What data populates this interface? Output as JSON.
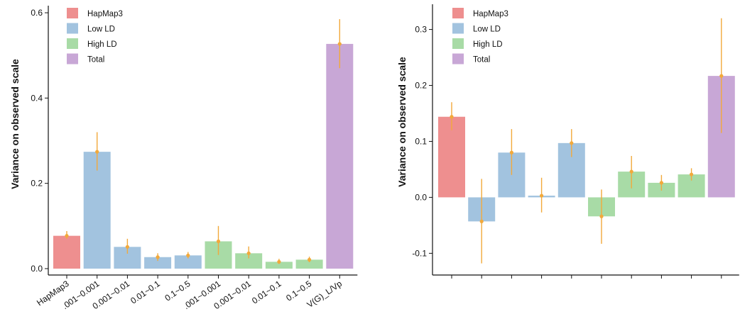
{
  "colors": {
    "HapMap3": "#ee8f8f",
    "Low LD": "#a2c3df",
    "High LD": "#a8dba6",
    "Total": "#c8a7d6",
    "error": "#f2a93b",
    "axis": "#111111"
  },
  "chart_data": [
    {
      "type": "bar",
      "ylabel": "Variance on observed scale",
      "ylim": [
        -0.01,
        0.61
      ],
      "yticks": [
        0.0,
        0.2,
        0.4,
        0.6
      ],
      "ytick_labels": [
        "0.0",
        "0.2",
        "0.4",
        "0.6"
      ],
      "legend": [
        "HapMap3",
        "Low LD",
        "High LD",
        "Total"
      ],
      "legend_position": "top-left",
      "categories": [
        "HapMap3",
        "0.001~0.001",
        "0.001~0.01",
        "0.01~0.1",
        "0.1~0.5",
        "0.001~0.001",
        "0.001~0.01",
        "0.01~0.1",
        "0.1~0.5",
        "V(G)_L/Vp"
      ],
      "xtick_labels": [
        "HapMap3",
        ".001~0.001",
        "0.001~0.01",
        "0.01~0.1",
        "0.1~0.5",
        ".001~0.001",
        "0.001~0.01",
        "0.01~0.1",
        "0.1~0.5",
        "V(G)_L/Vp"
      ],
      "groups": [
        "HapMap3",
        "Low LD",
        "Low LD",
        "Low LD",
        "Low LD",
        "High LD",
        "High LD",
        "High LD",
        "High LD",
        "Total"
      ],
      "values": [
        0.077,
        0.274,
        0.051,
        0.027,
        0.031,
        0.064,
        0.036,
        0.016,
        0.021,
        0.527
      ],
      "error_low": [
        0.07,
        0.23,
        0.035,
        0.018,
        0.024,
        0.032,
        0.024,
        0.011,
        0.015,
        0.47
      ],
      "error_high": [
        0.088,
        0.32,
        0.07,
        0.036,
        0.039,
        0.1,
        0.052,
        0.023,
        0.028,
        0.585
      ]
    },
    {
      "type": "bar",
      "ylabel": "Variance on observed scale",
      "ylim": [
        -0.135,
        0.34
      ],
      "yticks": [
        -0.1,
        0.0,
        0.1,
        0.2,
        0.3
      ],
      "ytick_labels": [
        "-0.1",
        "0.0",
        "0.1",
        "0.2",
        "0.3"
      ],
      "legend": [
        "HapMap3",
        "Low LD",
        "High LD",
        "Total"
      ],
      "legend_position": "top-left",
      "groups": [
        "HapMap3",
        "Low LD",
        "Low LD",
        "Low LD",
        "Low LD",
        "High LD",
        "High LD",
        "High LD",
        "High LD",
        "Total"
      ],
      "values": [
        0.144,
        -0.043,
        0.08,
        0.003,
        0.097,
        -0.034,
        0.046,
        0.026,
        0.041,
        0.217
      ],
      "error_low": [
        0.12,
        -0.118,
        0.04,
        -0.027,
        0.072,
        -0.083,
        0.016,
        0.012,
        0.03,
        0.115
      ],
      "error_high": [
        0.17,
        0.033,
        0.122,
        0.035,
        0.122,
        0.014,
        0.074,
        0.04,
        0.052,
        0.32
      ]
    }
  ]
}
